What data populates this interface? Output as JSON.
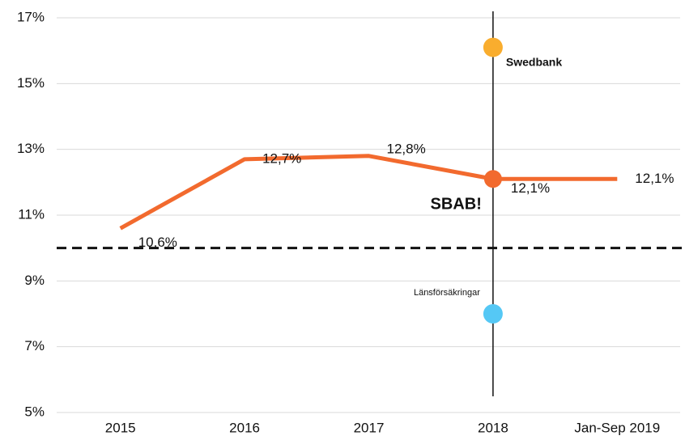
{
  "chart_data": {
    "type": "line",
    "categories": [
      "2015",
      "2016",
      "2017",
      "2018",
      "Jan-Sep 2019"
    ],
    "series": [
      {
        "name": "SBAB!",
        "color": "#f26a2e",
        "values": [
          10.6,
          12.7,
          12.8,
          12.1,
          12.1
        ],
        "value_labels": [
          "10,6%",
          "12,7%",
          "12,8%",
          "12,1%",
          "12,1%"
        ]
      }
    ],
    "highlight_category": "2018",
    "highlights": [
      {
        "name": "Swedbank",
        "value": 16.1,
        "color": "#f9ad2e"
      },
      {
        "name": "Länsförsäkringar",
        "value": 8.0,
        "color": "#55c8f5"
      }
    ],
    "reference_line": 10,
    "ylim": [
      5,
      17
    ],
    "yticks": [
      {
        "value": 5,
        "label": "5%"
      },
      {
        "value": 7,
        "label": "7%"
      },
      {
        "value": 9,
        "label": "9%"
      },
      {
        "value": 11,
        "label": "11%"
      },
      {
        "value": 13,
        "label": "13%"
      },
      {
        "value": 15,
        "label": "15%"
      },
      {
        "value": 17,
        "label": "17%"
      }
    ],
    "grid": true
  }
}
